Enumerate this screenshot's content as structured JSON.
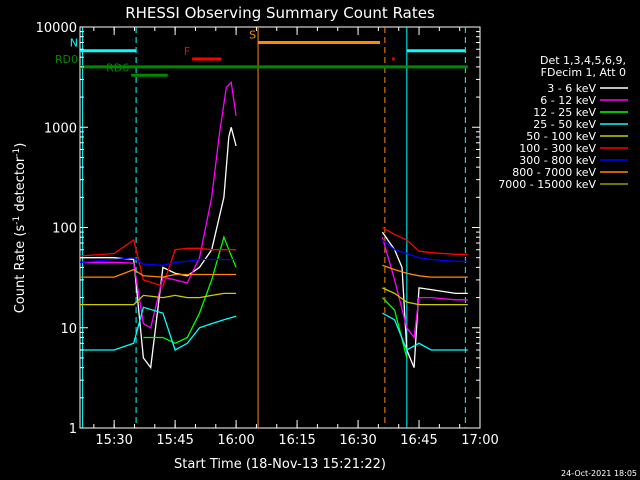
{
  "chart_data": {
    "type": "line",
    "title": "RHESSI Observing Summary Count Rates",
    "xlabel": "Start Time (18-Nov-13 15:21:22)",
    "ylabel_main": "Count Rate (s",
    "ylabel_sup1": "-1",
    "ylabel_mid": " detector",
    "ylabel_sup2": "-1",
    "ylabel_end": ")",
    "y_scale": "log",
    "ylim": [
      1,
      10000
    ],
    "xlim_min": [
      15.36,
      17.0
    ],
    "x_ticks": [
      {
        "v": 15.5,
        "label": "15:30"
      },
      {
        "v": 15.75,
        "label": "15:45"
      },
      {
        "v": 16.0,
        "label": "16:00"
      },
      {
        "v": 16.25,
        "label": "16:15"
      },
      {
        "v": 16.5,
        "label": "16:30"
      },
      {
        "v": 16.75,
        "label": "16:45"
      },
      {
        "v": 17.0,
        "label": "17:00"
      }
    ],
    "y_ticks": [
      {
        "v": 1,
        "label": "1"
      },
      {
        "v": 10,
        "label": "10"
      },
      {
        "v": 100,
        "label": "100"
      },
      {
        "v": 1000,
        "label": "1000"
      },
      {
        "v": 10000,
        "label": "10000"
      }
    ],
    "legend_header": [
      "Det 1,3,4,5,6,9,",
      "FDecim 1, Att 0"
    ],
    "legend_position": "right",
    "footer": "24-Oct-2021 18:05",
    "series": [
      {
        "name": "3 - 6 keV",
        "color": "#ffffff",
        "x": [
          15.36,
          15.5,
          15.58,
          15.62,
          15.65,
          15.7,
          15.75,
          15.8,
          15.85,
          15.9,
          15.95,
          15.97,
          15.98,
          16.0,
          16.05,
          16.58,
          16.6,
          16.65,
          16.68,
          16.7,
          16.73,
          16.75,
          16.8,
          16.9,
          16.95
        ],
        "y": [
          50,
          50,
          48,
          5,
          4,
          40,
          35,
          33,
          40,
          60,
          200,
          800,
          1000,
          650,
          null,
          null,
          90,
          60,
          40,
          6,
          4,
          25,
          24,
          22,
          22
        ]
      },
      {
        "name": "6 - 12 keV",
        "color": "#ff00ff",
        "x": [
          15.36,
          15.5,
          15.58,
          15.62,
          15.65,
          15.7,
          15.75,
          15.8,
          15.85,
          15.9,
          15.93,
          15.96,
          15.98,
          16.0,
          16.05,
          16.58,
          16.6,
          16.65,
          16.7,
          16.73,
          16.75,
          16.8,
          16.9,
          16.95
        ],
        "y": [
          45,
          45,
          44,
          11,
          10,
          32,
          30,
          28,
          50,
          200,
          800,
          2500,
          2800,
          1300,
          null,
          null,
          80,
          30,
          10,
          8,
          20,
          20,
          19,
          19
        ]
      },
      {
        "name": "12 - 25 keV",
        "color": "#00ff00",
        "x": [
          15.36,
          15.5,
          15.58,
          15.62,
          15.7,
          15.75,
          15.8,
          15.85,
          15.9,
          15.95,
          15.97,
          16.0,
          16.05,
          16.58,
          16.6,
          16.65,
          16.7,
          16.75,
          16.8,
          16.9,
          16.95
        ],
        "y": [
          null,
          null,
          null,
          8,
          8,
          7,
          8,
          14,
          30,
          80,
          60,
          40,
          null,
          null,
          20,
          15,
          5,
          null,
          null,
          null,
          null
        ]
      },
      {
        "name": "25 - 50 keV",
        "color": "#00ffff",
        "x": [
          15.36,
          15.5,
          15.58,
          15.62,
          15.7,
          15.75,
          15.8,
          15.85,
          15.9,
          15.95,
          16.0,
          16.05,
          16.58,
          16.6,
          16.65,
          16.7,
          16.75,
          16.8,
          16.9,
          16.95
        ],
        "y": [
          6,
          6,
          7,
          16,
          14,
          6,
          7,
          10,
          11,
          12,
          13,
          null,
          null,
          14,
          12,
          6,
          7,
          6,
          6,
          6
        ]
      },
      {
        "name": "50 - 100 keV",
        "color": "#cccc00",
        "x": [
          15.36,
          15.5,
          15.58,
          15.62,
          15.7,
          15.75,
          15.8,
          15.85,
          15.9,
          15.95,
          16.0,
          16.05,
          16.58,
          16.6,
          16.65,
          16.7,
          16.75,
          16.8,
          16.9,
          16.95
        ],
        "y": [
          17,
          17,
          17,
          21,
          20,
          21,
          20,
          20,
          21,
          22,
          22,
          null,
          null,
          25,
          22,
          18,
          17,
          17,
          17,
          17
        ]
      },
      {
        "name": "100 - 300 keV",
        "color": "#ff0000",
        "x": [
          15.36,
          15.5,
          15.58,
          15.62,
          15.7,
          15.75,
          15.8,
          15.85,
          15.9,
          15.95,
          16.0,
          16.05,
          16.58,
          16.6,
          16.65,
          16.7,
          16.75,
          16.8,
          16.9,
          16.95
        ],
        "y": [
          52,
          55,
          75,
          30,
          26,
          60,
          62,
          62,
          60,
          60,
          60,
          null,
          null,
          100,
          85,
          75,
          58,
          56,
          54,
          54
        ]
      },
      {
        "name": "300 - 800 keV",
        "color": "#0000ff",
        "x": [
          15.36,
          15.5,
          15.58,
          15.62,
          15.7,
          15.75,
          15.8,
          15.85,
          15.9,
          15.95,
          16.0,
          16.05,
          16.58,
          16.6,
          16.65,
          16.7,
          16.75,
          16.8,
          16.9,
          16.95
        ],
        "y": [
          45,
          48,
          50,
          43,
          42,
          45,
          46,
          48,
          48,
          48,
          48,
          null,
          null,
          75,
          60,
          55,
          50,
          48,
          46,
          46
        ]
      },
      {
        "name": "800 - 7000 keV",
        "color": "#ff8800",
        "x": [
          15.36,
          15.5,
          15.58,
          15.62,
          15.7,
          15.75,
          15.8,
          15.85,
          15.9,
          15.95,
          16.0,
          16.05,
          16.58,
          16.6,
          16.65,
          16.7,
          16.75,
          16.8,
          16.9,
          16.95
        ],
        "y": [
          32,
          32,
          38,
          33,
          32,
          34,
          34,
          34,
          34,
          34,
          34,
          null,
          null,
          42,
          38,
          35,
          33,
          32,
          32,
          32
        ]
      },
      {
        "name": "7000 - 15000 keV",
        "color": "#999900",
        "x": [],
        "y": []
      }
    ],
    "vlines": [
      {
        "x": 15.37,
        "color": "#00ffff",
        "style": "solid"
      },
      {
        "x": 15.59,
        "color": "#00ffff",
        "style": "dashed"
      },
      {
        "x": 16.09,
        "color": "#ff8800",
        "style": "solid"
      },
      {
        "x": 16.61,
        "color": "#ff8800",
        "style": "dashed"
      },
      {
        "x": 16.7,
        "color": "#00ffff",
        "style": "solid"
      },
      {
        "x": 16.94,
        "color": "#00ffff",
        "style": "dashed"
      }
    ],
    "flags": [
      {
        "label": "N",
        "color": "#00ffff",
        "x1": 15.36,
        "x2": 15.59,
        "y": 5800
      },
      {
        "label": "",
        "color": "#00ffff",
        "x1": 16.7,
        "x2": 16.94,
        "y": 5800
      },
      {
        "label": "S",
        "color": "#ff8800",
        "x1": 16.09,
        "x2": 16.59,
        "y": 7000
      },
      {
        "label": "F",
        "color": "#ff0000",
        "x1": 15.82,
        "x2": 15.94,
        "y": 4800
      },
      {
        "label": "",
        "color": "#ff0000",
        "x1": 16.64,
        "x2": 16.65,
        "y": 4800
      },
      {
        "label": "RD0",
        "color": "#008800",
        "x1": 15.36,
        "x2": 16.95,
        "y": 4000
      },
      {
        "label": "RD6",
        "color": "#008800",
        "x1": 15.57,
        "x2": 15.72,
        "y": 3300
      }
    ]
  }
}
